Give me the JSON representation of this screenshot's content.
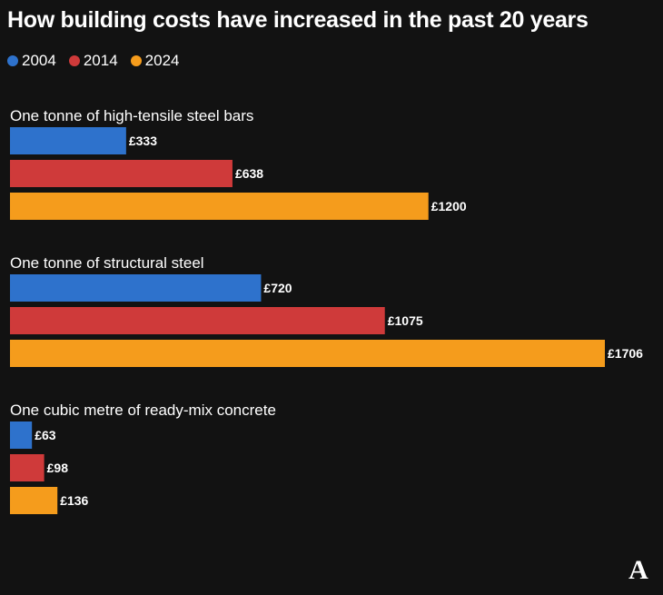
{
  "chart_data": {
    "type": "bar",
    "orientation": "horizontal",
    "title": "How building costs have increased in the past 20 years",
    "legend_placement": "top-left",
    "grid": false,
    "value_prefix": "£",
    "series": [
      {
        "name": "2004",
        "color": "#2e72cc"
      },
      {
        "name": "2014",
        "color": "#cf3a3a"
      },
      {
        "name": "2024",
        "color": "#f59c1c"
      }
    ],
    "groups": [
      {
        "label": "One tonne of high-tensile steel bars",
        "values": [
          333,
          638,
          1200
        ]
      },
      {
        "label": "One tonne of structural steel",
        "values": [
          720,
          1075,
          1706
        ]
      },
      {
        "label": "One cubic metre of ready-mix concrete",
        "values": [
          63,
          98,
          136
        ]
      }
    ],
    "xlim": [
      0,
      1706
    ]
  },
  "colors": {
    "background": "#121212",
    "text": "#ffffff"
  },
  "logo": {
    "icon": "publisher-logo-icon",
    "text": "A"
  }
}
